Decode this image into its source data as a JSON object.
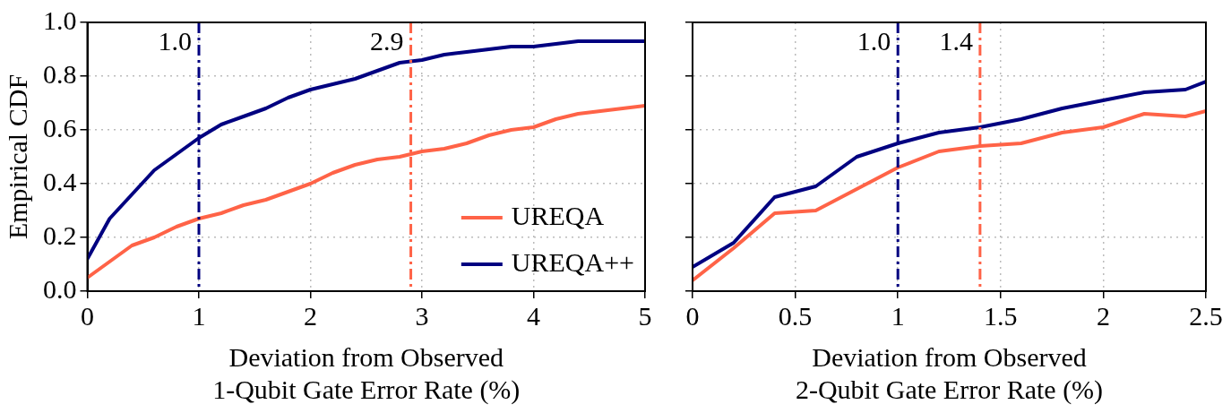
{
  "chart_data": [
    {
      "type": "line",
      "xlabel": "Deviation from Observed\n1-Qubit Gate Error Rate (%)",
      "ylabel": "Empirical CDF",
      "x": [
        0,
        0.2,
        0.4,
        0.6,
        0.8,
        1.0,
        1.2,
        1.4,
        1.6,
        1.8,
        2.0,
        2.2,
        2.4,
        2.6,
        2.8,
        3.0,
        3.2,
        3.4,
        3.6,
        3.8,
        4.0,
        4.2,
        4.4,
        4.6,
        4.8,
        5.0
      ],
      "series": [
        {
          "name": "UREQA",
          "color": "#ff6347",
          "values": [
            0.05,
            0.11,
            0.17,
            0.2,
            0.24,
            0.27,
            0.29,
            0.32,
            0.34,
            0.37,
            0.4,
            0.44,
            0.47,
            0.49,
            0.5,
            0.52,
            0.53,
            0.55,
            0.58,
            0.6,
            0.61,
            0.64,
            0.66,
            0.67,
            0.68,
            0.69
          ]
        },
        {
          "name": "UREQA++",
          "color": "#000080",
          "values": [
            0.12,
            0.27,
            0.36,
            0.45,
            0.51,
            0.57,
            0.62,
            0.65,
            0.68,
            0.72,
            0.75,
            0.77,
            0.79,
            0.82,
            0.85,
            0.86,
            0.88,
            0.89,
            0.9,
            0.91,
            0.91,
            0.92,
            0.93,
            0.93,
            0.93,
            0.93
          ]
        }
      ],
      "xlim": [
        0,
        5
      ],
      "xticks": [
        0,
        1,
        2,
        3,
        4,
        5
      ],
      "ylim": [
        0,
        1.0
      ],
      "yticks": [
        {
          "value": 0,
          "label": "0.0"
        },
        {
          "value": 0.2,
          "label": "0.2"
        },
        {
          "value": 0.4,
          "label": "0.4"
        },
        {
          "value": 0.6,
          "label": "0.6"
        },
        {
          "value": 0.8,
          "label": "0.8"
        },
        {
          "value": 1.0,
          "label": "1.0"
        }
      ],
      "ref_lines": [
        {
          "axis": "x",
          "value": 1.0,
          "label": "1.0",
          "color": "#000080",
          "line_style": "dashed"
        },
        {
          "axis": "x",
          "value": 2.9,
          "label": "2.9",
          "color": "#ff6347",
          "line_style": "dashed"
        }
      ],
      "grid": true,
      "legend": "bottom right",
      "marker": "none",
      "line_style": "solid"
    },
    {
      "type": "line",
      "xlabel": "Deviation from Observed\n2-Qubit Gate Error Rate (%)",
      "x": [
        0,
        0.2,
        0.4,
        0.6,
        0.8,
        1.0,
        1.2,
        1.4,
        1.6,
        1.8,
        2.0,
        2.2,
        2.4,
        2.5
      ],
      "series": [
        {
          "color": "#ff6347",
          "values": [
            0.04,
            0.16,
            0.29,
            0.3,
            0.38,
            0.46,
            0.52,
            0.54,
            0.55,
            0.59,
            0.61,
            0.66,
            0.65,
            0.67
          ]
        },
        {
          "color": "#000080",
          "values": [
            0.09,
            0.18,
            0.35,
            0.39,
            0.5,
            0.55,
            0.59,
            0.61,
            0.64,
            0.68,
            0.71,
            0.74,
            0.75,
            0.78
          ]
        }
      ],
      "xlim": [
        0,
        2.5
      ],
      "xticks": [
        0,
        0.5,
        1,
        1.5,
        2,
        2.5
      ],
      "ylim": [
        0,
        1.0
      ],
      "yticks": [
        0,
        0.2,
        0.4,
        0.6,
        0.8,
        1.0
      ],
      "ref_lines": [
        {
          "axis": "x",
          "value": 1.0,
          "label": "1.0",
          "color": "#000080",
          "line_style": "dashed"
        },
        {
          "axis": "x",
          "value": 1.4,
          "label": "1.4",
          "color": "#ff6347",
          "line_style": "dashed"
        }
      ],
      "grid": true,
      "legend": false,
      "tick_labels": "x",
      "marker": "none",
      "line_style": "solid"
    }
  ]
}
